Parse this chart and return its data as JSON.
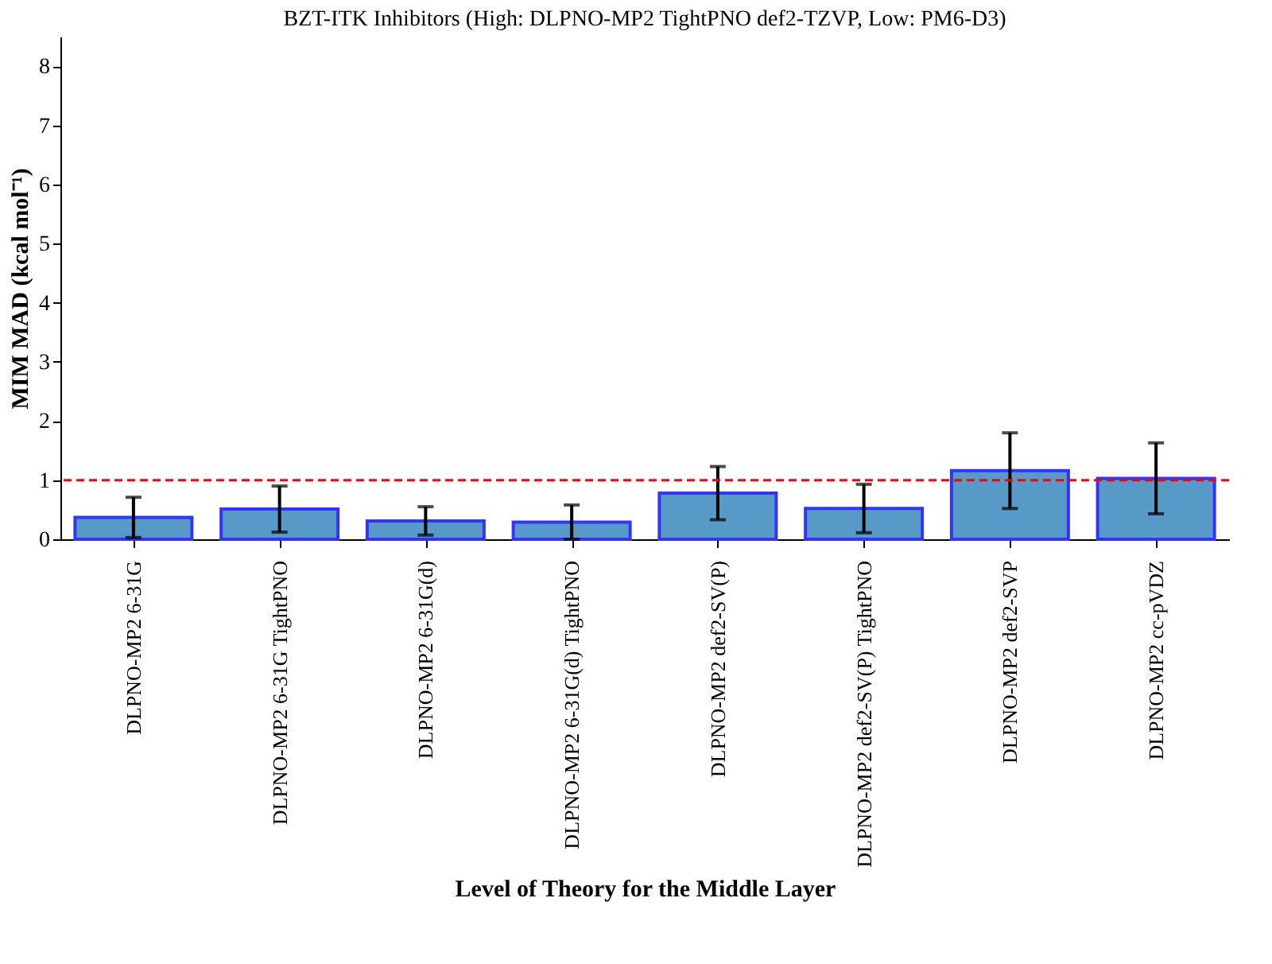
{
  "chart_data": {
    "type": "bar",
    "title": "BZT-ITK Inhibitors (High: DLPNO-MP2 TightPNO def2-TZVP, Low: PM6-D3)",
    "xlabel": "Level of Theory for the Middle Layer",
    "ylabel": "MIM MAD (kcal mol⁻¹)",
    "categories": [
      "DLPNO-MP2 6-31G",
      "DLPNO-MP2 6-31G TightPNO",
      "DLPNO-MP2 6-31G(d)",
      "DLPNO-MP2 6-31G(d) TightPNO",
      "DLPNO-MP2 def2-SV(P)",
      "DLPNO-MP2 def2-SV(P) TightPNO",
      "DLPNO-MP2 def2-SVP",
      "DLPNO-MP2 cc-pVDZ"
    ],
    "values": [
      0.37,
      0.51,
      0.31,
      0.29,
      0.78,
      0.52,
      1.16,
      1.03
    ],
    "errors": [
      0.34,
      0.39,
      0.24,
      0.29,
      0.45,
      0.41,
      0.64,
      0.6
    ],
    "color": "#5799c7",
    "ylim": [
      0,
      8.5
    ],
    "yticks": [
      0,
      1,
      2,
      3,
      4,
      5,
      6,
      7,
      8
    ],
    "ref_lines": [
      {
        "axis": "y",
        "value": 1,
        "color": "#ff0000",
        "line_style": "dashed"
      }
    ],
    "grid": false
  }
}
